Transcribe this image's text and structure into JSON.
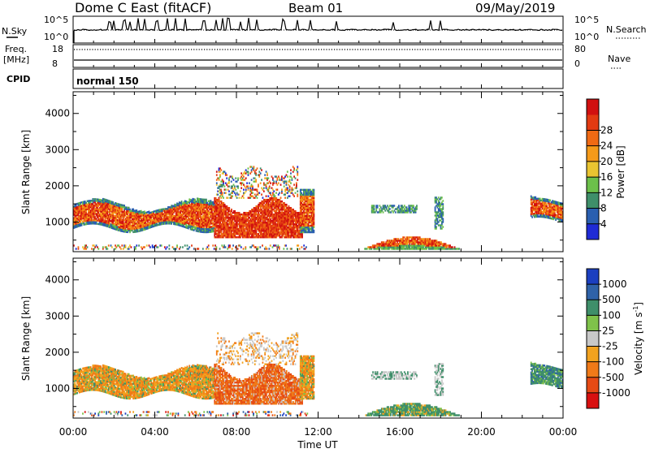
{
  "header": {
    "site": "Dome C East (fitACF)",
    "beam": "Beam 01",
    "date": "09/May/2019"
  },
  "top_panels": {
    "nsky_label": "N.Sky",
    "nsky_ticks": [
      "10^5",
      "10^0"
    ],
    "nsearch_label": "N.Search",
    "nsearch_ticks": [
      "10^5",
      "10^0"
    ],
    "freq_label": "Freq.",
    "freq_unit": "[MHz]",
    "freq_ticks": [
      "18",
      "8"
    ],
    "nave_label": "Nave",
    "nave_ticks": [
      "80",
      "0"
    ],
    "cpid_label": "CPID",
    "cpid_value": "normal 150"
  },
  "chart_data": [
    {
      "type": "heatmap",
      "name": "power",
      "ylabel": "Slant Range [km]",
      "xlabel": "Time UT",
      "xlim_hours": [
        0,
        24
      ],
      "x_ticks": [
        "00:00",
        "04:00",
        "08:00",
        "12:00",
        "16:00",
        "20:00",
        "00:00"
      ],
      "ylim": [
        180,
        4600
      ],
      "y_ticks": [
        1000,
        2000,
        3000,
        4000
      ],
      "colorbar": {
        "label": "Power [dB]",
        "ticks": [
          "4",
          "8",
          "12",
          "16",
          "20",
          "24",
          "28"
        ],
        "colors": [
          "#1f2bd6",
          "#2a5fb0",
          "#3f8f6a",
          "#6cc04a",
          "#e9c431",
          "#f59a19",
          "#f06a14",
          "#e23a12",
          "#d11010"
        ]
      }
    },
    {
      "type": "heatmap",
      "name": "velocity",
      "ylabel": "Slant Range [km]",
      "xlabel": "Time UT",
      "xlim_hours": [
        0,
        24
      ],
      "x_ticks": [
        "00:00",
        "04:00",
        "08:00",
        "12:00",
        "16:00",
        "20:00",
        "00:00"
      ],
      "ylim": [
        180,
        4600
      ],
      "y_ticks": [
        1000,
        2000,
        3000,
        4000
      ],
      "colorbar": {
        "label": "Velocity [m s",
        "label_sup": "-1",
        "label_end": "]",
        "ticks": [
          "1000",
          "500",
          "100",
          "25",
          "-25",
          "-100",
          "-500",
          "-1000"
        ],
        "colors": [
          "#1b3fc0",
          "#2f62a8",
          "#3f8f6a",
          "#7fc24a",
          "#c8c8c8",
          "#f2a21f",
          "#f07a18",
          "#e64a14",
          "#d81010"
        ]
      }
    }
  ],
  "x_axis_title": "Time UT"
}
